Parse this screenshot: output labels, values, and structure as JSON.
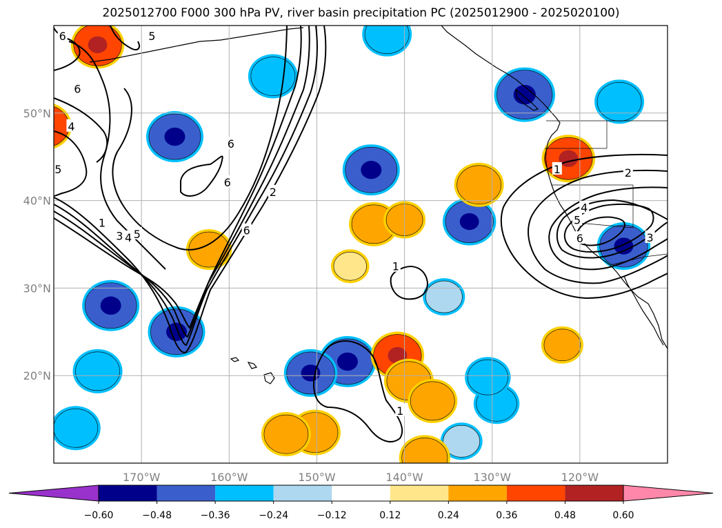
{
  "title": "2025012700 F000 300 hPa PV, river basin precipitation PC (2025012900 - 2025020100)",
  "chart_data": {
    "type": "map",
    "title": "2025012700 F000 300 hPa PV, river basin precipitation PC (2025012900 - 2025020100)",
    "projection": "lat-lon",
    "extent": {
      "lon": [
        -180,
        -110
      ],
      "lat": [
        10,
        60
      ]
    },
    "grid": true,
    "lon_ticks": [
      {
        "value": -170,
        "label": "170°W"
      },
      {
        "value": -160,
        "label": "160°W"
      },
      {
        "value": -150,
        "label": "150°W"
      },
      {
        "value": -140,
        "label": "140°W"
      },
      {
        "value": -130,
        "label": "130°W"
      },
      {
        "value": -120,
        "label": "120°W"
      }
    ],
    "lat_ticks": [
      {
        "value": 20,
        "label": "20°N"
      },
      {
        "value": 30,
        "label": "30°N"
      },
      {
        "value": 40,
        "label": "40°N"
      },
      {
        "value": 50,
        "label": "50°N"
      }
    ],
    "colorbar": {
      "extend": "both",
      "boundaries": [
        -0.6,
        -0.48,
        -0.36,
        -0.24,
        -0.12,
        0.12,
        0.24,
        0.36,
        0.48,
        0.6
      ],
      "labels": [
        "−0.60",
        "−0.48",
        "−0.36",
        "−0.24",
        "−0.12",
        "0.12",
        "0.24",
        "0.36",
        "0.48",
        "0.60"
      ],
      "colors": [
        "#9932cc",
        "#00008b",
        "#3a5fcd",
        "#00bfff",
        "#add8f0",
        "#ffffff",
        "#ffe68a",
        "#ffa500",
        "#ff4500",
        "#b22222",
        "#ff88aa"
      ]
    },
    "pv_contours": [
      {
        "level": 1,
        "label": "1",
        "label_at": [
          -141,
          32.5
        ]
      },
      {
        "level": 1,
        "label": "1",
        "label_at": [
          -140.5,
          16
        ]
      },
      {
        "level": 1,
        "label": "1",
        "label_at": [
          -174.5,
          37.5
        ]
      },
      {
        "level": 2,
        "label": "2",
        "label_at": [
          -114.5,
          43.2
        ]
      },
      {
        "level": 2,
        "label": "2",
        "label_at": [
          -155,
          41
        ]
      },
      {
        "level": 3,
        "label": "3",
        "label_at": [
          -172.5,
          36
        ]
      },
      {
        "level": 3,
        "label": "3",
        "label_at": [
          -112,
          35.8
        ]
      },
      {
        "level": 4,
        "label": "4",
        "label_at": [
          -171.5,
          35.8
        ]
      },
      {
        "level": 4,
        "label": "4",
        "label_at": [
          -119.5,
          39.2
        ]
      },
      {
        "level": 4,
        "label": "4",
        "label_at": [
          -178,
          48.5
        ]
      },
      {
        "level": 5,
        "label": "5",
        "label_at": [
          -170.5,
          36.2
        ]
      },
      {
        "level": 5,
        "label": "5",
        "label_at": [
          -120.3,
          37.8
        ]
      },
      {
        "level": 5,
        "label": "5",
        "label_at": [
          -179.5,
          43.6
        ]
      },
      {
        "level": 5,
        "label": "5",
        "label_at": [
          -168.8,
          58.8
        ]
      },
      {
        "level": 6,
        "label": "6",
        "label_at": [
          -158,
          36.6
        ]
      },
      {
        "level": 6,
        "label": "6",
        "label_at": [
          -160.2,
          42.1
        ]
      },
      {
        "level": 6,
        "label": "6",
        "label_at": [
          -159.8,
          46.5
        ]
      },
      {
        "level": 6,
        "label": "6",
        "label_at": [
          -177.3,
          52.8
        ]
      },
      {
        "level": 6,
        "label": "6",
        "label_at": [
          -179,
          58.8
        ]
      },
      {
        "level": 6,
        "label": "6",
        "label_at": [
          -120,
          35.7
        ]
      },
      {
        "level": 1,
        "label": "1",
        "label_at": [
          -122.6,
          43.6
        ]
      }
    ],
    "precip_pc_regions": [
      {
        "lon": -166.2,
        "lat": 47.3,
        "value": -0.5
      },
      {
        "lon": -143.8,
        "lat": 43.5,
        "value": -0.5
      },
      {
        "lon": -173.5,
        "lat": 28.0,
        "value": -0.5
      },
      {
        "lon": -166.0,
        "lat": 25.0,
        "value": -0.5
      },
      {
        "lon": -146.5,
        "lat": 21.6,
        "value": -0.5
      },
      {
        "lon": -150.7,
        "lat": 20.3,
        "value": -0.45
      },
      {
        "lon": -126.3,
        "lat": 52.1,
        "value": -0.55
      },
      {
        "lon": -115.0,
        "lat": 34.8,
        "value": -0.45
      },
      {
        "lon": -132.6,
        "lat": 37.6,
        "value": -0.45
      },
      {
        "lon": -155.0,
        "lat": 54.2,
        "value": -0.4
      },
      {
        "lon": -175.0,
        "lat": 20.5,
        "value": -0.4
      },
      {
        "lon": -177.5,
        "lat": 14.0,
        "value": -0.4
      },
      {
        "lon": -142.0,
        "lat": 59.0,
        "value": -0.4
      },
      {
        "lon": -129.5,
        "lat": 16.8,
        "value": -0.35
      },
      {
        "lon": -130.5,
        "lat": 19.8,
        "value": -0.35
      },
      {
        "lon": -133.5,
        "lat": 12.5,
        "value": -0.3
      },
      {
        "lon": -115.5,
        "lat": 51.3,
        "value": -0.4
      },
      {
        "lon": -135.5,
        "lat": 29.0,
        "value": -0.3
      },
      {
        "lon": -175.0,
        "lat": 57.8,
        "value": 0.45
      },
      {
        "lon": -121.3,
        "lat": 44.8,
        "value": 0.45
      },
      {
        "lon": -140.8,
        "lat": 22.3,
        "value": 0.45
      },
      {
        "lon": -150.2,
        "lat": 13.5,
        "value": 0.42
      },
      {
        "lon": -153.5,
        "lat": 13.3,
        "value": 0.4
      },
      {
        "lon": -137.7,
        "lat": 10.6,
        "value": 0.42
      },
      {
        "lon": -143.5,
        "lat": 37.3,
        "value": 0.4
      },
      {
        "lon": -131.5,
        "lat": 41.8,
        "value": 0.4
      },
      {
        "lon": -139.5,
        "lat": 19.4,
        "value": 0.4
      },
      {
        "lon": -136.8,
        "lat": 17.1,
        "value": 0.4
      },
      {
        "lon": -181.0,
        "lat": 48.5,
        "value": 0.45
      },
      {
        "lon": -162.3,
        "lat": 34.4,
        "value": 0.35
      },
      {
        "lon": -140.0,
        "lat": 37.8,
        "value": 0.3
      },
      {
        "lon": -146.2,
        "lat": 32.5,
        "value": 0.25
      },
      {
        "lon": -122.0,
        "lat": 23.5,
        "value": 0.3
      }
    ]
  }
}
